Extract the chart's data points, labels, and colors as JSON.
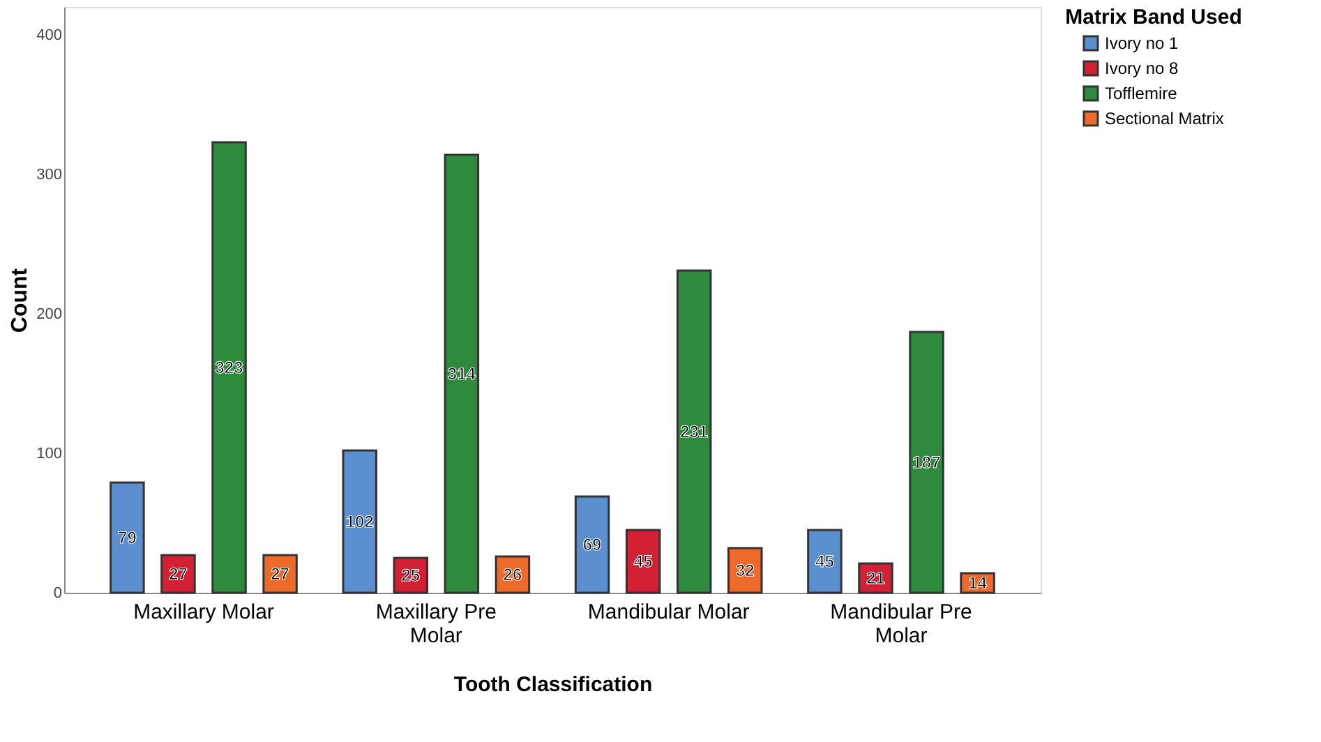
{
  "chart_data": {
    "type": "bar",
    "xlabel": "Tooth Classification",
    "ylabel": "Count",
    "legend_title": "Matrix Band Used",
    "categories": [
      "Maxillary Molar",
      "Maxillary Pre Molar",
      "Mandibular Molar",
      "Mandibular Pre Molar"
    ],
    "series": [
      {
        "name": "Ivory no 1",
        "color": "#5b8fd0",
        "values": [
          79,
          102,
          69,
          45
        ]
      },
      {
        "name": "Ivory no 8",
        "color": "#d42035",
        "values": [
          27,
          25,
          45,
          21
        ]
      },
      {
        "name": "Tofflemire",
        "color": "#2e8b3e",
        "values": [
          323,
          314,
          231,
          187
        ]
      },
      {
        "name": "Sectional Matrix",
        "color": "#ee6a2a",
        "values": [
          27,
          26,
          32,
          14
        ]
      }
    ],
    "ylim": [
      0,
      420
    ],
    "yticks": [
      0,
      100,
      200,
      300,
      400
    ],
    "grid": false,
    "legend": "top right",
    "data_labels": true
  }
}
